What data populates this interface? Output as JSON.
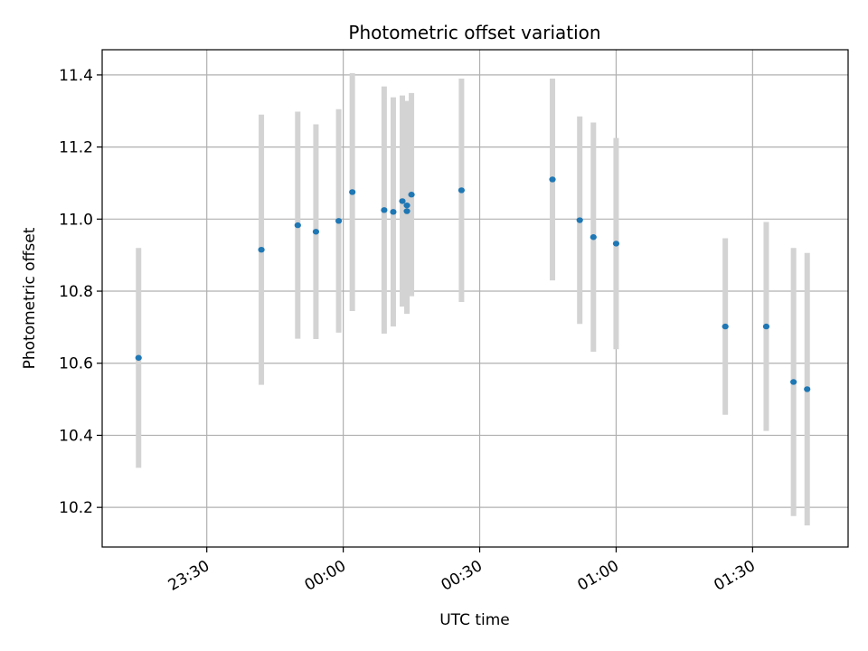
{
  "chart_data": {
    "type": "scatter",
    "title": "Photometric offset variation",
    "xlabel": "UTC time",
    "ylabel": "Photometric offset",
    "x_tick_labels": [
      "23:30",
      "00:00",
      "00:30",
      "01:00",
      "01:30"
    ],
    "x_tick_minutes": [
      -30,
      0,
      30,
      60,
      90
    ],
    "y_tick_labels": [
      "10.2",
      "10.4",
      "10.6",
      "10.8",
      "11.0",
      "11.2",
      "11.4"
    ],
    "y_ticks": [
      10.2,
      10.4,
      10.6,
      10.8,
      11.0,
      11.2,
      11.4
    ],
    "xlim": [
      "23:07",
      "01:51"
    ],
    "ylim": [
      10.09,
      11.47
    ],
    "grid": true,
    "colors": {
      "marker": "#1f77b4",
      "errorbar": "#d3d3d3",
      "grid": "#b0b0b0"
    },
    "series": [
      {
        "points": [
          {
            "x": "23:15",
            "y": 10.615,
            "err": 0.305
          },
          {
            "x": "23:42",
            "y": 10.915,
            "err": 0.375
          },
          {
            "x": "23:50",
            "y": 10.983,
            "err": 0.315
          },
          {
            "x": "23:54",
            "y": 10.965,
            "err": 0.298
          },
          {
            "x": "23:59",
            "y": 10.995,
            "err": 0.31
          },
          {
            "x": "00:02",
            "y": 11.075,
            "err": 0.33
          },
          {
            "x": "00:09",
            "y": 11.025,
            "err": 0.343
          },
          {
            "x": "00:11",
            "y": 11.02,
            "err": 0.318
          },
          {
            "x": "00:13",
            "y": 11.05,
            "err": 0.293
          },
          {
            "x": "00:14",
            "y": 11.022,
            "err": 0.285
          },
          {
            "x": "00:14",
            "y": 11.038,
            "err": 0.29
          },
          {
            "x": "00:15",
            "y": 11.068,
            "err": 0.282
          },
          {
            "x": "00:26",
            "y": 11.08,
            "err": 0.31
          },
          {
            "x": "00:46",
            "y": 11.11,
            "err": 0.28
          },
          {
            "x": "00:52",
            "y": 10.997,
            "err": 0.288
          },
          {
            "x": "00:55",
            "y": 10.95,
            "err": 0.318
          },
          {
            "x": "01:00",
            "y": 10.932,
            "err": 0.293
          },
          {
            "x": "01:24",
            "y": 10.702,
            "err": 0.245
          },
          {
            "x": "01:33",
            "y": 10.702,
            "err": 0.29
          },
          {
            "x": "01:39",
            "y": 10.548,
            "err": 0.372
          },
          {
            "x": "01:42",
            "y": 10.528,
            "err": 0.378
          }
        ]
      }
    ]
  }
}
